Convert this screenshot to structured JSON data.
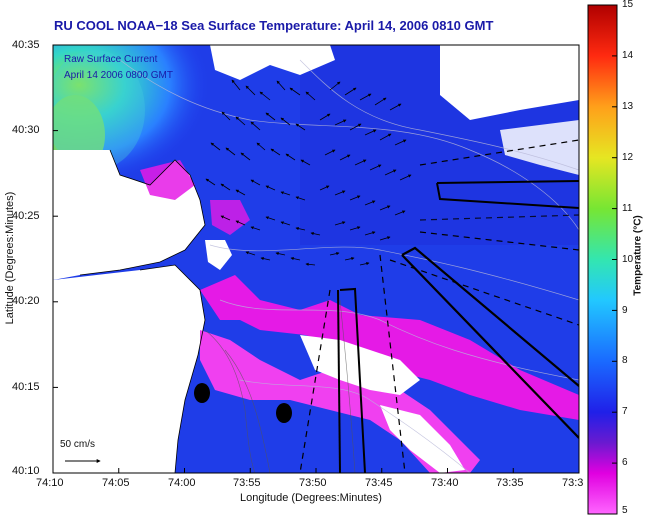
{
  "title": "RU COOL  NOAA−18  Sea Surface Temperature:  April 14, 2006 0810 GMT",
  "legend": {
    "line1": "Raw Surface Current",
    "line2": "April 14 2006 0800 GMT"
  },
  "axes": {
    "xlabel": "Longitude (Degrees:Minutes)",
    "ylabel": "Latitude (Degrees:Minutes)",
    "xticks": [
      "74:10",
      "74:05",
      "74:00",
      "73:55",
      "73:50",
      "73:45",
      "73:40",
      "73:35",
      "73:3"
    ],
    "yticks": [
      "40:35",
      "40:30",
      "40:25",
      "40:20",
      "40:15",
      "40:10"
    ]
  },
  "colorbar": {
    "label": "Temperature (°C)",
    "ticks": [
      "15",
      "14",
      "13",
      "12",
      "11",
      "10",
      "9",
      "8",
      "7",
      "6",
      "5"
    ],
    "range": [
      5,
      15
    ]
  },
  "scale": {
    "label": "50 cm/s"
  },
  "colors": {
    "title": "#1a1aa8",
    "land": "#ffffff",
    "water_cold": "#1a2ae6",
    "water_warm": "#4a9aff",
    "cold_edge": "#ff22ee"
  }
}
